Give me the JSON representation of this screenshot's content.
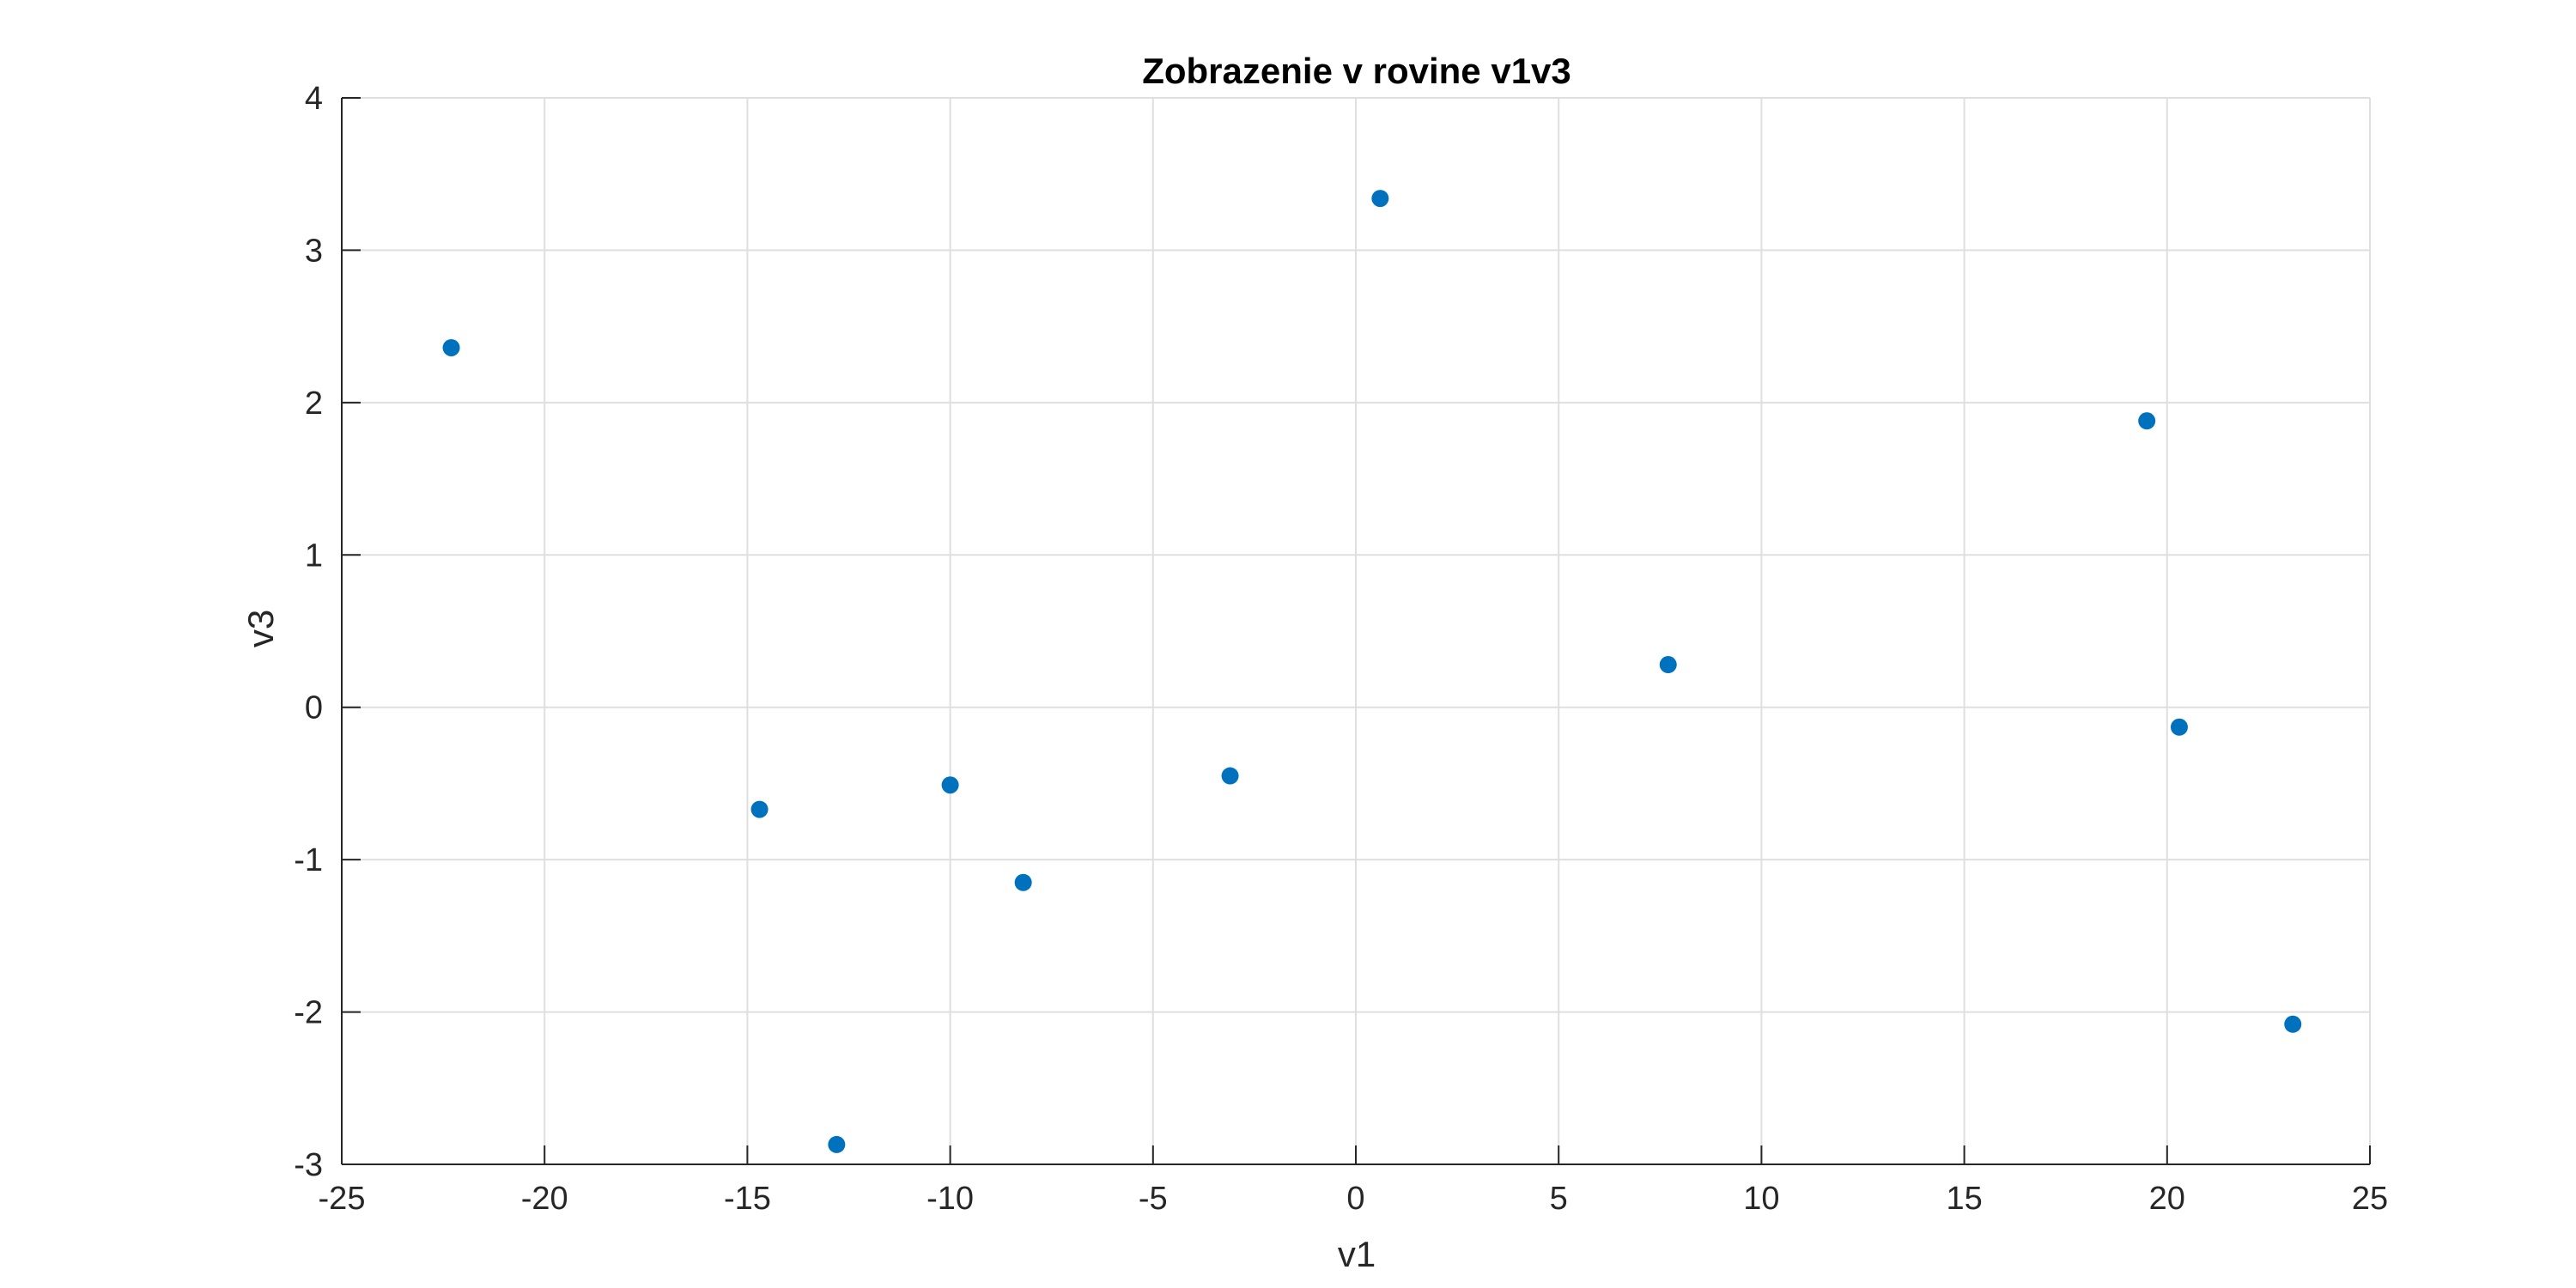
{
  "chart_data": {
    "type": "scatter",
    "title": "Zobrazenie v rovine v1v3",
    "xlabel": "v1",
    "ylabel": "v3",
    "xlim": [
      -25,
      25
    ],
    "ylim": [
      -3,
      4
    ],
    "xticks": [
      -25,
      -20,
      -15,
      -10,
      -5,
      0,
      5,
      10,
      15,
      20,
      25
    ],
    "yticks": [
      -3,
      -2,
      -1,
      0,
      1,
      2,
      3,
      4
    ],
    "xtick_labels": [
      "-25",
      "-20",
      "-15",
      "-10",
      "-5",
      "0",
      "5",
      "10",
      "15",
      "20",
      "25"
    ],
    "ytick_labels": [
      "-3",
      "-2",
      "-1",
      "0",
      "1",
      "2",
      "3",
      "4"
    ],
    "grid": true,
    "series": [
      {
        "color": "#0072BD",
        "points": [
          {
            "x": -22.3,
            "y": 2.36
          },
          {
            "x": -14.7,
            "y": -0.67
          },
          {
            "x": -12.8,
            "y": -2.87
          },
          {
            "x": -10.0,
            "y": -0.51
          },
          {
            "x": -8.2,
            "y": -1.15
          },
          {
            "x": -3.1,
            "y": -0.45
          },
          {
            "x": 0.6,
            "y": 3.34
          },
          {
            "x": 7.7,
            "y": 0.28
          },
          {
            "x": 19.5,
            "y": 1.88
          },
          {
            "x": 20.3,
            "y": -0.13
          },
          {
            "x": 23.1,
            "y": -2.08
          }
        ]
      }
    ]
  }
}
